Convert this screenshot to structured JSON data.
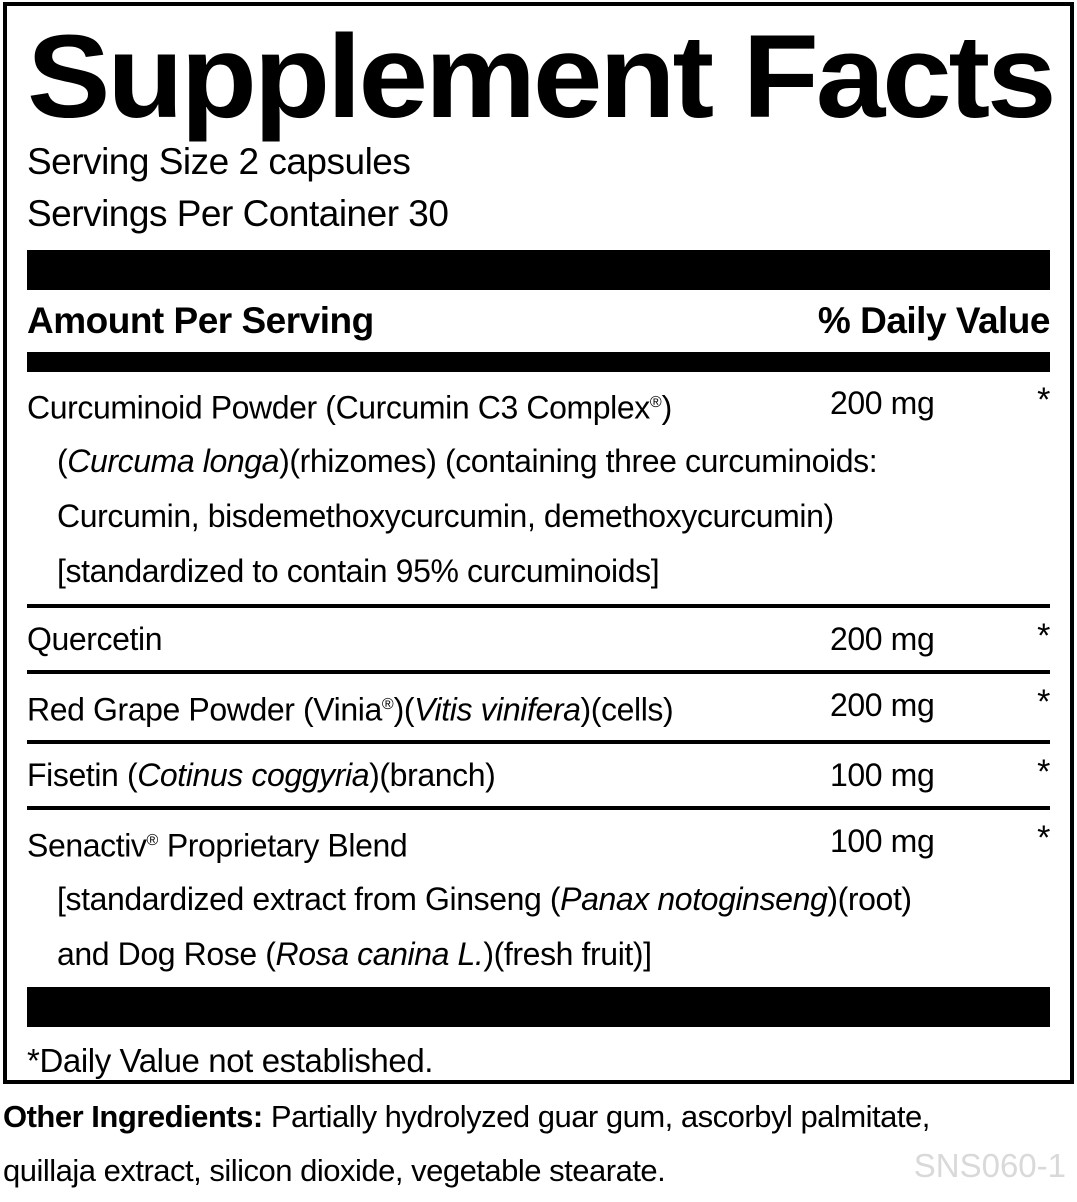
{
  "label": {
    "title": "Supplement Facts",
    "serving_size": "Serving Size 2 capsules",
    "servings_per_container": "Servings Per Container 30",
    "column_headers": {
      "amount": "Amount Per Serving",
      "daily_value": "% Daily Value"
    },
    "rows": [
      {
        "name": [
          {
            "t": "Curcuminoid Powder (Curcumin C3 Complex"
          },
          {
            "t": "®",
            "sup": true
          },
          {
            "t": ")"
          }
        ],
        "amount": "200 mg",
        "daily_value": "*",
        "details": [
          [
            {
              "t": "("
            },
            {
              "t": "Curcuma longa",
              "i": true
            },
            {
              "t": ")(rhizomes) (containing three curcuminoids:"
            }
          ],
          [
            {
              "t": "Curcumin, bisdemethoxycurcumin, demethoxycurcumin)"
            }
          ],
          [
            {
              "t": "[standardized to contain 95% curcuminoids]"
            }
          ]
        ]
      },
      {
        "name": [
          {
            "t": "Quercetin"
          }
        ],
        "amount": "200 mg",
        "daily_value": "*",
        "details": []
      },
      {
        "name": [
          {
            "t": "Red Grape Powder (Vinia"
          },
          {
            "t": "®",
            "sup": true
          },
          {
            "t": ")("
          },
          {
            "t": "Vitis vinifera",
            "i": true
          },
          {
            "t": ")(cells)"
          }
        ],
        "amount": "200 mg",
        "daily_value": "*",
        "details": []
      },
      {
        "name": [
          {
            "t": "Fisetin ("
          },
          {
            "t": "Cotinus coggyria",
            "i": true
          },
          {
            "t": ")(branch)"
          }
        ],
        "amount": "100 mg",
        "daily_value": "*",
        "details": []
      },
      {
        "name": [
          {
            "t": "Senactiv"
          },
          {
            "t": "®",
            "sup": true
          },
          {
            "t": " Proprietary Blend"
          }
        ],
        "amount": "100 mg",
        "daily_value": "*",
        "details": [
          [
            {
              "t": "[standardized extract from Ginseng ("
            },
            {
              "t": "Panax notoginseng",
              "i": true
            },
            {
              "t": ")(root)"
            }
          ],
          [
            {
              "t": "and Dog Rose ("
            },
            {
              "t": "Rosa canina L.",
              "i": true
            },
            {
              "t": ")(fresh fruit)]"
            }
          ]
        ]
      }
    ],
    "footnote": "*Daily Value not established.",
    "other_ingredients": {
      "line1": [
        {
          "t": "Other Ingredients:",
          "b": true
        },
        {
          "t": " Partially hydrolyzed guar gum, ascorbyl palmitate,"
        }
      ],
      "line2": [
        {
          "t": "quillaja extract, silicon dioxide, vegetable stearate."
        }
      ]
    },
    "product_code": "SNS060-1",
    "colors": {
      "text": "#000000",
      "background": "#ffffff",
      "product_code_gray": "#d9d9d9"
    }
  }
}
